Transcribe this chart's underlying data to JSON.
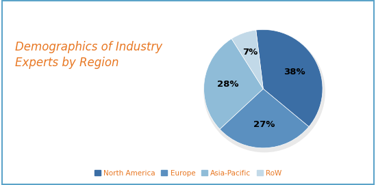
{
  "title": "Demographics of Industry\nExperts by Region",
  "title_color": "#E87722",
  "title_fontsize": 12,
  "labels": [
    "North America",
    "Europe",
    "Asia-Pacific",
    "RoW"
  ],
  "values": [
    38,
    27,
    28,
    7
  ],
  "colors": [
    "#3B6EA5",
    "#5B90C0",
    "#8FBCD8",
    "#C2D9E8"
  ],
  "autopct_labels": [
    "38%",
    "27%",
    "28%",
    "7%"
  ],
  "legend_labels": [
    "North America",
    "Europe",
    "Asia-Pacific",
    "RoW"
  ],
  "background_color": "#FFFFFF",
  "border_color": "#5BA3C9",
  "startangle": 97
}
